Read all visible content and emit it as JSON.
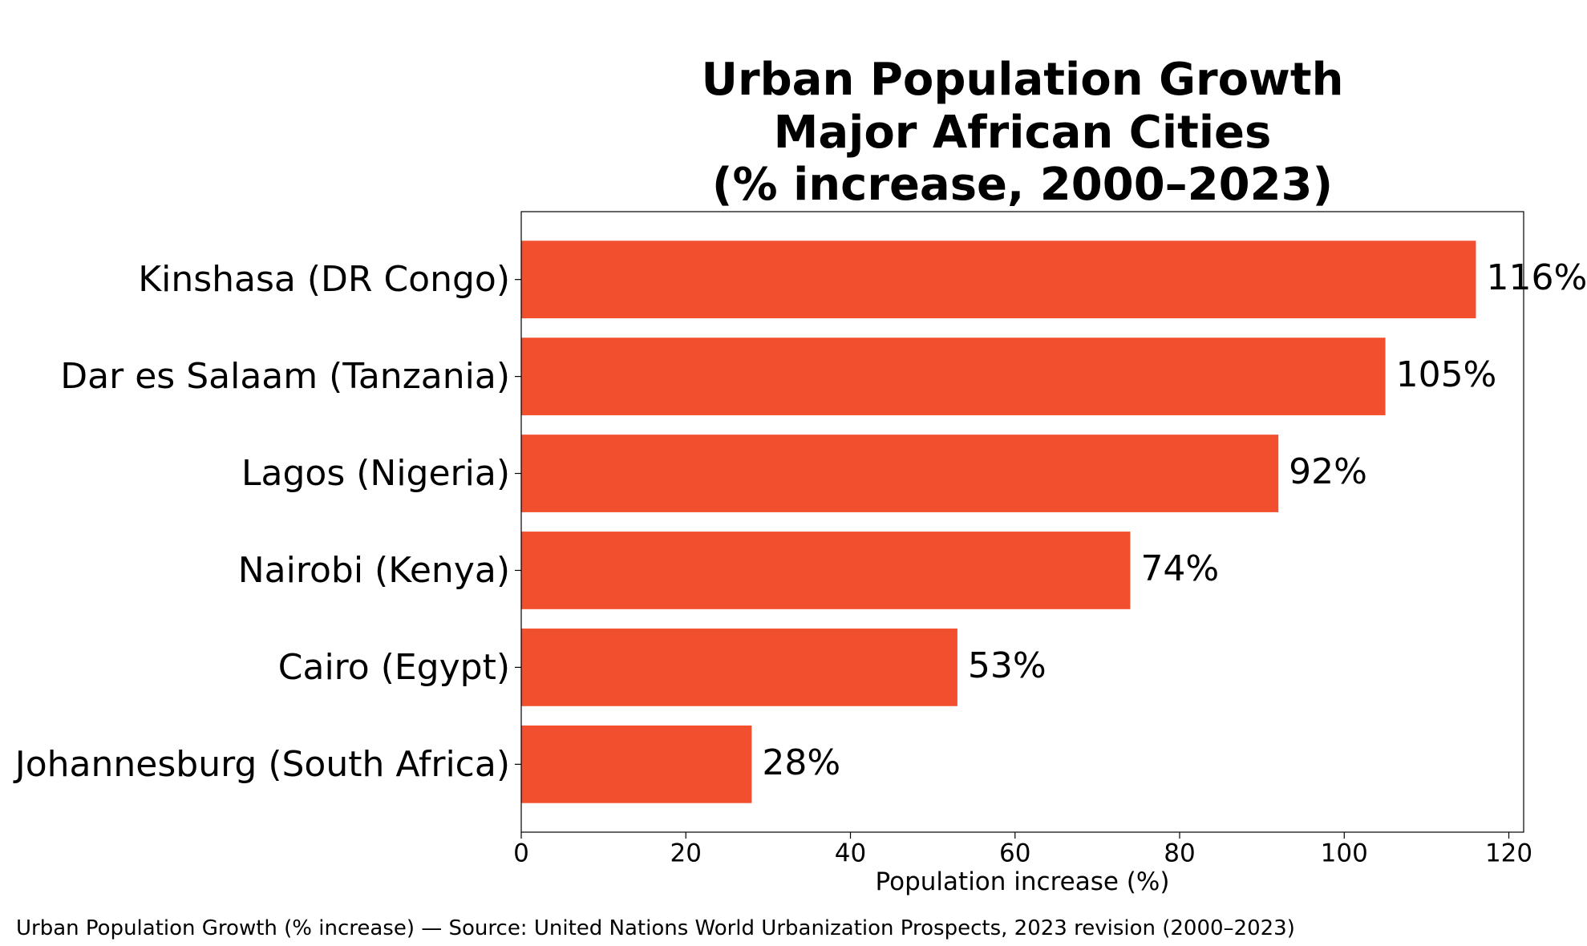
{
  "chart_data": {
    "type": "bar",
    "orientation": "horizontal",
    "title_lines": [
      "Urban Population Growth",
      "Major African Cities",
      "(% increase, 2000–2023)"
    ],
    "categories": [
      "Kinshasa (DR Congo)",
      "Dar es Salaam (Tanzania)",
      "Lagos (Nigeria)",
      "Nairobi (Kenya)",
      "Cairo (Egypt)",
      "Johannesburg (South Africa)"
    ],
    "values": [
      116,
      105,
      92,
      74,
      53,
      28
    ],
    "value_labels": [
      "116%",
      "105%",
      "92%",
      "74%",
      "53%",
      "28%"
    ],
    "xlabel": "Population increase (%)",
    "ylabel": "",
    "xlim": [
      0,
      121.8
    ],
    "xticks": [
      0,
      20,
      40,
      60,
      80,
      100,
      120
    ],
    "xtick_labels": [
      "0",
      "20",
      "40",
      "60",
      "80",
      "100",
      "120"
    ],
    "grid": false,
    "legend": "none",
    "bar_color": "#f24f2f"
  },
  "caption": "Urban Population Growth (% increase) — Source: United Nations World Urbanization Prospects, 2023 revision (2000–2023)"
}
